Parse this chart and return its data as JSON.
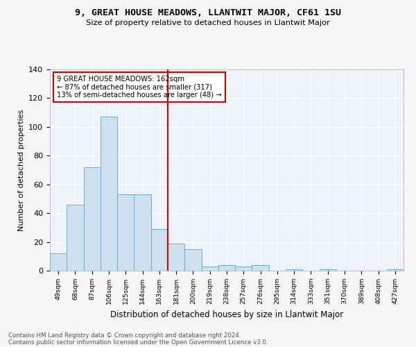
{
  "title": "9, GREAT HOUSE MEADOWS, LLANTWIT MAJOR, CF61 1SU",
  "subtitle": "Size of property relative to detached houses in Llantwit Major",
  "xlabel": "Distribution of detached houses by size in Llantwit Major",
  "ylabel": "Number of detached properties",
  "bin_labels": [
    "49sqm",
    "68sqm",
    "87sqm",
    "106sqm",
    "125sqm",
    "144sqm",
    "163sqm",
    "181sqm",
    "200sqm",
    "219sqm",
    "238sqm",
    "257sqm",
    "276sqm",
    "295sqm",
    "314sqm",
    "333sqm",
    "351sqm",
    "370sqm",
    "389sqm",
    "408sqm",
    "427sqm"
  ],
  "bar_heights": [
    12,
    46,
    72,
    107,
    53,
    53,
    29,
    19,
    15,
    3,
    4,
    3,
    4,
    0,
    1,
    0,
    1,
    0,
    0,
    0,
    1
  ],
  "bar_color": "#cce0f0",
  "bar_edge_color": "#6aafd6",
  "vline_color": "#cc0000",
  "annotation_text": "9 GREAT HOUSE MEADOWS: 162sqm\n← 87% of detached houses are smaller (317)\n13% of semi-detached houses are larger (48) →",
  "annotation_box_color": "#ffffff",
  "annotation_box_edge_color": "#cc0000",
  "ylim": [
    0,
    140
  ],
  "yticks": [
    0,
    20,
    40,
    60,
    80,
    100,
    120,
    140
  ],
  "background_color": "#edf3f8",
  "grid_color": "#ffffff",
  "fig_background": "#f5f5f5",
  "footer_line1": "Contains HM Land Registry data © Crown copyright and database right 2024.",
  "footer_line2": "Contains public sector information licensed under the Open Government Licence v3.0."
}
